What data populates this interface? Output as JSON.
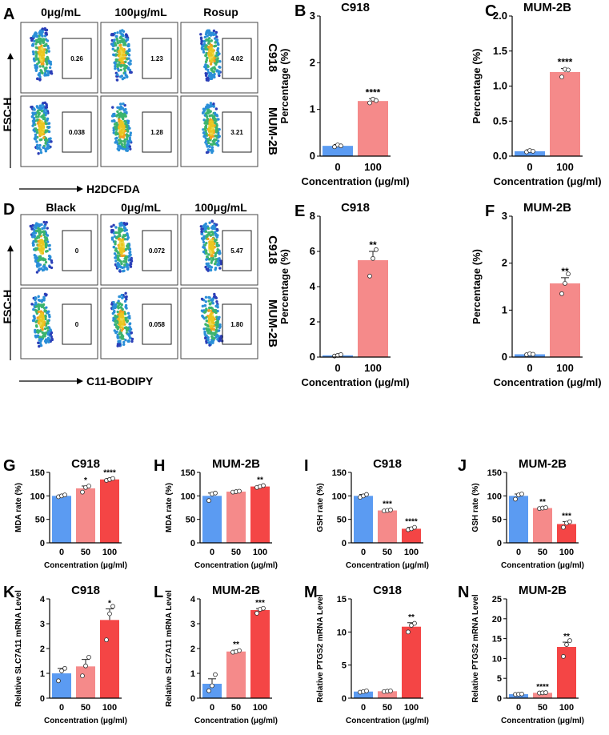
{
  "flow_panels": [
    {
      "letter": "A",
      "col_headers": [
        "0μg/mL",
        "100μg/mL",
        "Rosup"
      ],
      "row_labels": [
        "C918",
        "MUM-2B"
      ],
      "values": [
        [
          "0.26",
          "1.23",
          "4.02"
        ],
        [
          "0.038",
          "1.28",
          "3.21"
        ]
      ],
      "ylabel": "FSC-H",
      "xlabel": "H2DCFDA"
    },
    {
      "letter": "D",
      "col_headers": [
        "Black",
        "0μg/mL",
        "100μg/mL"
      ],
      "row_labels": [
        "C918",
        "MUM-2B"
      ],
      "values": [
        [
          "0",
          "0.072",
          "5.47"
        ],
        [
          "0",
          "0.058",
          "1.80"
        ]
      ],
      "ylabel": "FSC-H",
      "xlabel": "C11-BODIPY"
    }
  ],
  "colors": {
    "blue": "#5b9bf2",
    "salmon": "#f58a8a",
    "red": "#f44545"
  },
  "chart_data": [
    {
      "letter": "B",
      "type": "bar",
      "title": "C918",
      "xlabel": "Concentration (μg/ml)",
      "ylabel": "Percentage (%)",
      "categories": [
        "0",
        "100"
      ],
      "values": [
        0.22,
        1.18
      ],
      "errors": [
        0.03,
        0.05
      ],
      "ylim": [
        0,
        3
      ],
      "yticks": [
        "0",
        "1",
        "2",
        "3"
      ],
      "significance": [
        "",
        "****"
      ],
      "points": [
        [
          0.2,
          0.24,
          0.22
        ],
        [
          1.14,
          1.22,
          1.19
        ]
      ]
    },
    {
      "letter": "C",
      "type": "bar",
      "title": "MUM-2B",
      "xlabel": "Concentration (μg/ml)",
      "ylabel": "Percentage (%)",
      "categories": [
        "0",
        "100"
      ],
      "values": [
        0.07,
        1.2
      ],
      "errors": [
        0.02,
        0.05
      ],
      "ylim": [
        0,
        2
      ],
      "yticks": [
        "0.0",
        "0.5",
        "1.0",
        "1.5",
        "2.0"
      ],
      "significance": [
        "",
        "****"
      ],
      "points": [
        [
          0.06,
          0.08,
          0.07
        ],
        [
          1.13,
          1.24,
          1.23
        ]
      ]
    },
    {
      "letter": "E",
      "type": "bar",
      "title": "C918",
      "xlabel": "Concentration (μg/ml)",
      "ylabel": "Percentage (%)",
      "categories": [
        "0",
        "100"
      ],
      "values": [
        0.1,
        5.5
      ],
      "errors": [
        0.05,
        0.5
      ],
      "ylim": [
        0,
        8
      ],
      "yticks": [
        "0",
        "2",
        "4",
        "6",
        "8"
      ],
      "significance": [
        "",
        "**"
      ],
      "points": [
        [
          0.06,
          0.1,
          0.14
        ],
        [
          4.6,
          5.6,
          6.1
        ]
      ]
    },
    {
      "letter": "F",
      "type": "bar",
      "title": "MUM-2B",
      "xlabel": "Concentration (μg/ml)",
      "ylabel": "Percentage (%)",
      "categories": [
        "0",
        "100"
      ],
      "values": [
        0.06,
        1.57
      ],
      "errors": [
        0.02,
        0.12
      ],
      "ylim": [
        0,
        3
      ],
      "yticks": [
        "0",
        "1",
        "2",
        "3"
      ],
      "significance": [
        "",
        "**"
      ],
      "points": [
        [
          0.05,
          0.07,
          0.06
        ],
        [
          1.35,
          1.57,
          1.77
        ]
      ]
    },
    {
      "letter": "G",
      "type": "bar",
      "title": "C918",
      "xlabel": "Concentration (μg/ml)",
      "ylabel": "MDA rate (%)",
      "categories": [
        "0",
        "50",
        "100"
      ],
      "values": [
        100,
        116,
        135
      ],
      "errors": [
        2,
        5,
        2
      ],
      "ylim": [
        0,
        150
      ],
      "yticks": [
        "0",
        "50",
        "100",
        "150"
      ],
      "significance": [
        "",
        "*",
        "****"
      ],
      "points": [
        [
          98,
          100,
          102
        ],
        [
          108,
          118,
          121
        ],
        [
          133,
          135,
          137
        ]
      ]
    },
    {
      "letter": "H",
      "type": "bar",
      "title": "MUM-2B",
      "xlabel": "Concentration (μg/ml)",
      "ylabel": "MDA rate (%)",
      "categories": [
        "0",
        "50",
        "100"
      ],
      "values": [
        100,
        109,
        120
      ],
      "errors": [
        6,
        1,
        2
      ],
      "ylim": [
        0,
        150
      ],
      "yticks": [
        "0",
        "50",
        "100",
        "150"
      ],
      "significance": [
        "",
        "",
        "**"
      ],
      "points": [
        [
          90,
          104,
          106
        ],
        [
          108,
          109,
          110
        ],
        [
          118,
          120,
          122
        ]
      ]
    },
    {
      "letter": "I",
      "type": "bar",
      "title": "C918",
      "xlabel": "Concentration (μg/ml)",
      "ylabel": "GSH rate (%)",
      "categories": [
        "0",
        "50",
        "100"
      ],
      "values": [
        100,
        69,
        30
      ],
      "errors": [
        3,
        2,
        3
      ],
      "ylim": [
        0,
        150
      ],
      "yticks": [
        "0",
        "50",
        "100",
        "150"
      ],
      "significance": [
        "",
        "***",
        "****"
      ],
      "points": [
        [
          97,
          100,
          103
        ],
        [
          68,
          69,
          70
        ],
        [
          28,
          30,
          33
        ]
      ]
    },
    {
      "letter": "J",
      "type": "bar",
      "title": "MUM-2B",
      "xlabel": "Concentration (μg/ml)",
      "ylabel": "GSH rate (%)",
      "categories": [
        "0",
        "50",
        "100"
      ],
      "values": [
        100,
        74,
        40
      ],
      "errors": [
        4,
        1,
        5
      ],
      "ylim": [
        0,
        150
      ],
      "yticks": [
        "0",
        "50",
        "100",
        "150"
      ],
      "significance": [
        "",
        "**",
        "***"
      ],
      "points": [
        [
          93,
          102,
          104
        ],
        [
          73,
          74,
          75
        ],
        [
          33,
          42,
          45
        ]
      ]
    },
    {
      "letter": "K",
      "type": "bar",
      "title": "C918",
      "xlabel": "Concentration (μg/ml)",
      "ylabel": "Relative SLC7A11 mRNA Level",
      "categories": [
        "0",
        "50",
        "100"
      ],
      "values": [
        1.0,
        1.28,
        3.15
      ],
      "errors": [
        0.2,
        0.28,
        0.45
      ],
      "ylim": [
        0,
        4
      ],
      "yticks": [
        "0",
        "1",
        "2",
        "3",
        "4"
      ],
      "significance": [
        "",
        "",
        "*"
      ],
      "points": [
        [
          0.7,
          1.1,
          1.2
        ],
        [
          0.9,
          1.3,
          1.65
        ],
        [
          2.35,
          3.4,
          3.7
        ]
      ]
    },
    {
      "letter": "L",
      "type": "bar",
      "title": "MUM-2B",
      "xlabel": "Concentration (μg/ml)",
      "ylabel": "Relative SLC7A11 mRNA Level",
      "categories": [
        "0",
        "50",
        "100"
      ],
      "values": [
        0.58,
        1.88,
        3.55
      ],
      "errors": [
        0.2,
        0.05,
        0.06
      ],
      "ylim": [
        0,
        4
      ],
      "yticks": [
        "0",
        "1",
        "2",
        "3",
        "4"
      ],
      "significance": [
        "",
        "**",
        "***"
      ],
      "points": [
        [
          0.3,
          0.5,
          0.95
        ],
        [
          1.85,
          1.88,
          1.92
        ],
        [
          3.42,
          3.58,
          3.62
        ]
      ]
    },
    {
      "letter": "M",
      "type": "bar",
      "title": "C918",
      "xlabel": "Concentration (μg/ml)",
      "ylabel": "Relative PTGS2 mRNA Level",
      "categories": [
        "0",
        "50",
        "100"
      ],
      "values": [
        1.0,
        1.05,
        10.8
      ],
      "errors": [
        0.15,
        0.05,
        0.6
      ],
      "ylim": [
        0,
        15
      ],
      "yticks": [
        "0",
        "5",
        "10",
        "15"
      ],
      "significance": [
        "",
        "",
        "**"
      ],
      "points": [
        [
          0.9,
          1.0,
          1.1
        ],
        [
          1.0,
          1.05,
          1.1
        ],
        [
          10.0,
          11.0,
          11.3
        ]
      ]
    },
    {
      "letter": "N",
      "type": "bar",
      "title": "MUM-2B",
      "xlabel": "Concentration (μg/ml)",
      "ylabel": "Relative PTGS2 mRNA Level",
      "categories": [
        "0",
        "50",
        "100"
      ],
      "values": [
        1.0,
        1.35,
        12.9
      ],
      "errors": [
        0.1,
        0.05,
        1.2
      ],
      "ylim": [
        0,
        25
      ],
      "yticks": [
        "0",
        "5",
        "10",
        "15",
        "20",
        "25"
      ],
      "significance": [
        "",
        "****",
        "**"
      ],
      "points": [
        [
          0.95,
          1.0,
          1.05
        ],
        [
          1.3,
          1.35,
          1.4
        ],
        [
          10.5,
          13.5,
          14.5
        ]
      ]
    }
  ]
}
